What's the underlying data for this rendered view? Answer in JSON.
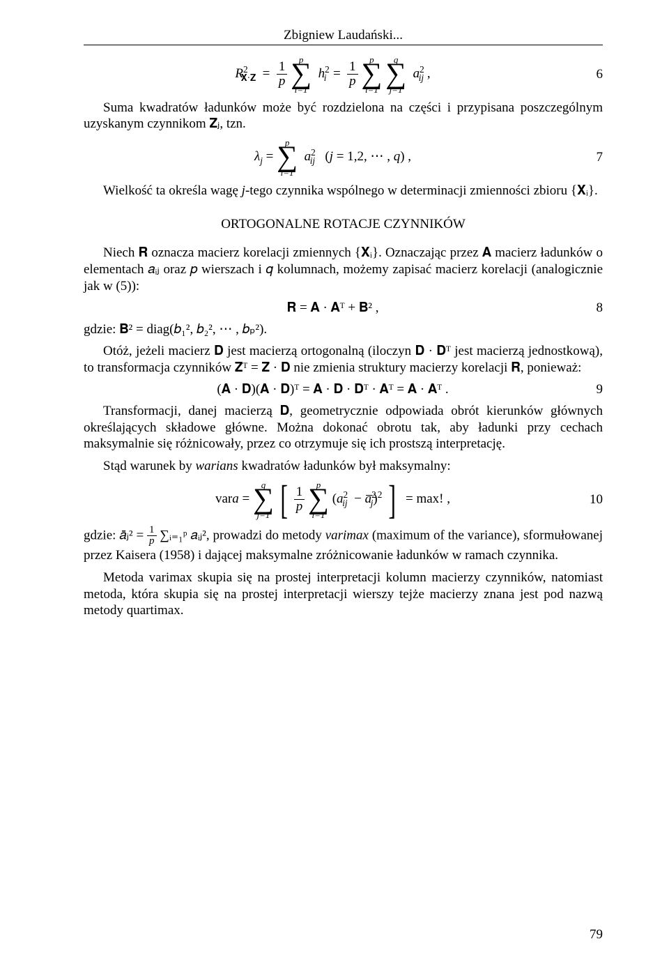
{
  "header_author": "Zbigniew Laudański...",
  "eq6": {
    "lhs": "R",
    "lhs_sub": "𝐗·𝐙",
    "lhs_sup": "2",
    "rhs_full": "formula",
    "number": "6"
  },
  "para1": "Suma kwadratów ładunków może być rozdzielona na części i przypisana poszczególnym uzyskanym czynnikom 𝐙ⱼ, tzn.",
  "eq7": {
    "number": "7"
  },
  "para2_pre": "Wielkość ta określa wagę ",
  "para2_j": "j",
  "para2_post": "-tego czynnika wspólnego w determinacji zmienności zbioru {𝐗ᵢ}.",
  "section_title": "ORTOGONALNE ROTACJE CZYNNIKÓW",
  "para3": "Niech 𝐑 oznacza macierz korelacji zmiennych {𝐗ᵢ}. Oznaczając przez 𝐀 macierz ładunków o elementach 𝑎ᵢⱼ oraz 𝑝 wierszach i 𝑞 kolumnach, możemy zapisać macierz korelacji (analogicznie jak w (5)):",
  "eq8": {
    "text": "𝐑 = 𝐀 · 𝐀ᵀ + 𝐁² ,",
    "number": "8"
  },
  "para4": "gdzie: 𝐁² = diag(𝑏₁², 𝑏₂², ⋯ , 𝑏ₚ²).",
  "para5": "Otóż, jeżeli macierz 𝐃 jest macierzą ortogonalną (iloczyn 𝐃 · 𝐃ᵀ jest macierzą jednostkową), to transformacja czynników 𝐙ᵀ = 𝐙 · 𝐃 nie zmienia struktury macierzy korelacji 𝐑, ponieważ:",
  "eq9": {
    "text": "(𝐀 · 𝐃)(𝐀 · 𝐃)ᵀ = 𝐀 · 𝐃 · 𝐃ᵀ · 𝐀ᵀ = 𝐀 · 𝐀ᵀ .",
    "number": "9"
  },
  "para6": "Transformacji, danej macierzą 𝐃, geometrycznie odpowiada obrót kierunków głównych określających składowe główne. Można dokonać obrotu tak, aby ładunki przy cechach maksymalnie się różnicowały, przez co otrzymuje się ich prostszą interpretację.",
  "para7_pre": "Stąd warunek by ",
  "para7_it": "warians",
  "para7_post": " kwadratów ładunków był maksymalny:",
  "eq10": {
    "number": "10"
  },
  "para8_a": "gdzie: 𝑎̄ⱼ² = ",
  "para8_b": "∑ᵢ₌₁ᵖ 𝑎ᵢⱼ², prowadzi do metody ",
  "para8_it": "varimax",
  "para8_c": " (maximum of the variance), sformułowanej przez Kaisera (1958) i dającej maksymalne zróżnicowanie ładunków w ramach czynnika.",
  "para9": "Metoda varimax skupia się na prostej interpretacji kolumn macierzy czynników, natomiast metoda, która skupia się na prostej interpretacji wierszy tejże macierzy znana jest pod nazwą metody quartimax.",
  "page_number": "79"
}
